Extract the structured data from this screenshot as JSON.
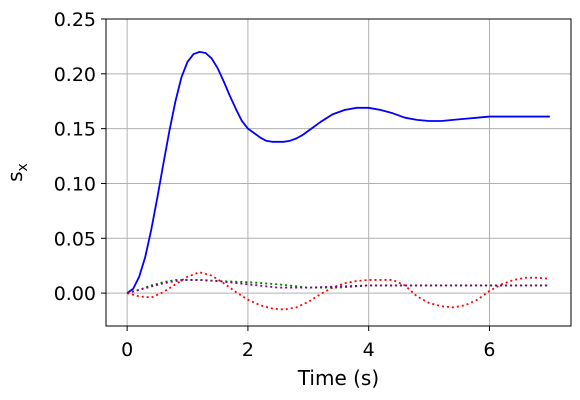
{
  "chart_data": {
    "type": "line",
    "xlabel": "Time (s)",
    "ylabel": "s",
    "ylabel_subscript": "x",
    "xlim": [
      -0.35,
      7.35
    ],
    "ylim": [
      -0.03,
      0.25
    ],
    "xticks": [
      0,
      2,
      4,
      6
    ],
    "xtick_labels": [
      "0",
      "2",
      "4",
      "6"
    ],
    "yticks": [
      0.0,
      0.05,
      0.1,
      0.15,
      0.2,
      0.25
    ],
    "ytick_labels": [
      "0.00",
      "0.05",
      "0.10",
      "0.15",
      "0.20",
      "0.25"
    ],
    "grid": true,
    "legend": "none",
    "series": [
      {
        "color": "#0000ff",
        "style": "solid",
        "x": [
          0,
          0.1,
          0.2,
          0.3,
          0.4,
          0.5,
          0.6,
          0.7,
          0.8,
          0.9,
          1.0,
          1.1,
          1.2,
          1.3,
          1.4,
          1.5,
          1.6,
          1.7,
          1.8,
          1.9,
          2.0,
          2.1,
          2.2,
          2.3,
          2.4,
          2.5,
          2.6,
          2.7,
          2.8,
          2.9,
          3.0,
          3.2,
          3.4,
          3.6,
          3.8,
          4.0,
          4.2,
          4.4,
          4.6,
          4.8,
          5.0,
          5.2,
          5.4,
          5.6,
          5.8,
          6.0,
          6.2,
          6.4,
          6.6,
          6.8,
          7.0
        ],
        "y": [
          0.0,
          0.004,
          0.015,
          0.033,
          0.058,
          0.087,
          0.118,
          0.148,
          0.175,
          0.197,
          0.211,
          0.218,
          0.22,
          0.219,
          0.214,
          0.205,
          0.193,
          0.18,
          0.168,
          0.157,
          0.15,
          0.146,
          0.142,
          0.139,
          0.138,
          0.138,
          0.138,
          0.139,
          0.141,
          0.144,
          0.148,
          0.156,
          0.163,
          0.167,
          0.169,
          0.169,
          0.167,
          0.164,
          0.16,
          0.158,
          0.157,
          0.157,
          0.158,
          0.159,
          0.16,
          0.161,
          0.161,
          0.161,
          0.161,
          0.161,
          0.161
        ]
      },
      {
        "color": "#ff0000",
        "style": "dotted",
        "x": [
          0,
          0.2,
          0.4,
          0.6,
          0.8,
          1.0,
          1.2,
          1.4,
          1.6,
          1.8,
          2.0,
          2.2,
          2.4,
          2.6,
          2.8,
          3.0,
          3.2,
          3.4,
          3.6,
          3.8,
          4.0,
          4.2,
          4.4,
          4.6,
          4.8,
          5.0,
          5.2,
          5.4,
          5.6,
          5.8,
          6.0,
          6.2,
          6.4,
          6.6,
          6.8,
          7.0
        ],
        "y": [
          0.0,
          -0.003,
          -0.004,
          0.001,
          0.008,
          0.015,
          0.019,
          0.016,
          0.009,
          0.001,
          -0.006,
          -0.011,
          -0.014,
          -0.015,
          -0.013,
          -0.008,
          -0.001,
          0.005,
          0.009,
          0.011,
          0.012,
          0.012,
          0.012,
          0.007,
          -0.003,
          -0.009,
          -0.012,
          -0.013,
          -0.011,
          -0.006,
          0.002,
          0.008,
          0.012,
          0.014,
          0.014,
          0.013
        ]
      },
      {
        "color": "#008000",
        "style": "dotted",
        "x": [
          0,
          0.2,
          0.4,
          0.6,
          0.8,
          1.0,
          1.2,
          1.5,
          2.0,
          2.5,
          3.0,
          3.5,
          4.0,
          4.5,
          5.0,
          5.5,
          6.0,
          6.5,
          7.0
        ],
        "y": [
          0.0,
          0.003,
          0.007,
          0.01,
          0.012,
          0.012,
          0.012,
          0.011,
          0.01,
          0.008,
          0.005,
          0.005,
          0.007,
          0.007,
          0.007,
          0.007,
          0.007,
          0.007,
          0.007
        ]
      },
      {
        "color": "#800080",
        "style": "dotted",
        "x": [
          0,
          0.2,
          0.4,
          0.6,
          0.8,
          1.0,
          1.2,
          1.5,
          2.0,
          2.5,
          3.0,
          3.5,
          4.0,
          4.5,
          5.0,
          5.5,
          6.0,
          6.5,
          7.0
        ],
        "y": [
          0.0,
          0.003,
          0.006,
          0.009,
          0.011,
          0.012,
          0.012,
          0.011,
          0.008,
          0.005,
          0.005,
          0.006,
          0.007,
          0.007,
          0.007,
          0.007,
          0.007,
          0.007,
          0.007
        ]
      }
    ]
  }
}
